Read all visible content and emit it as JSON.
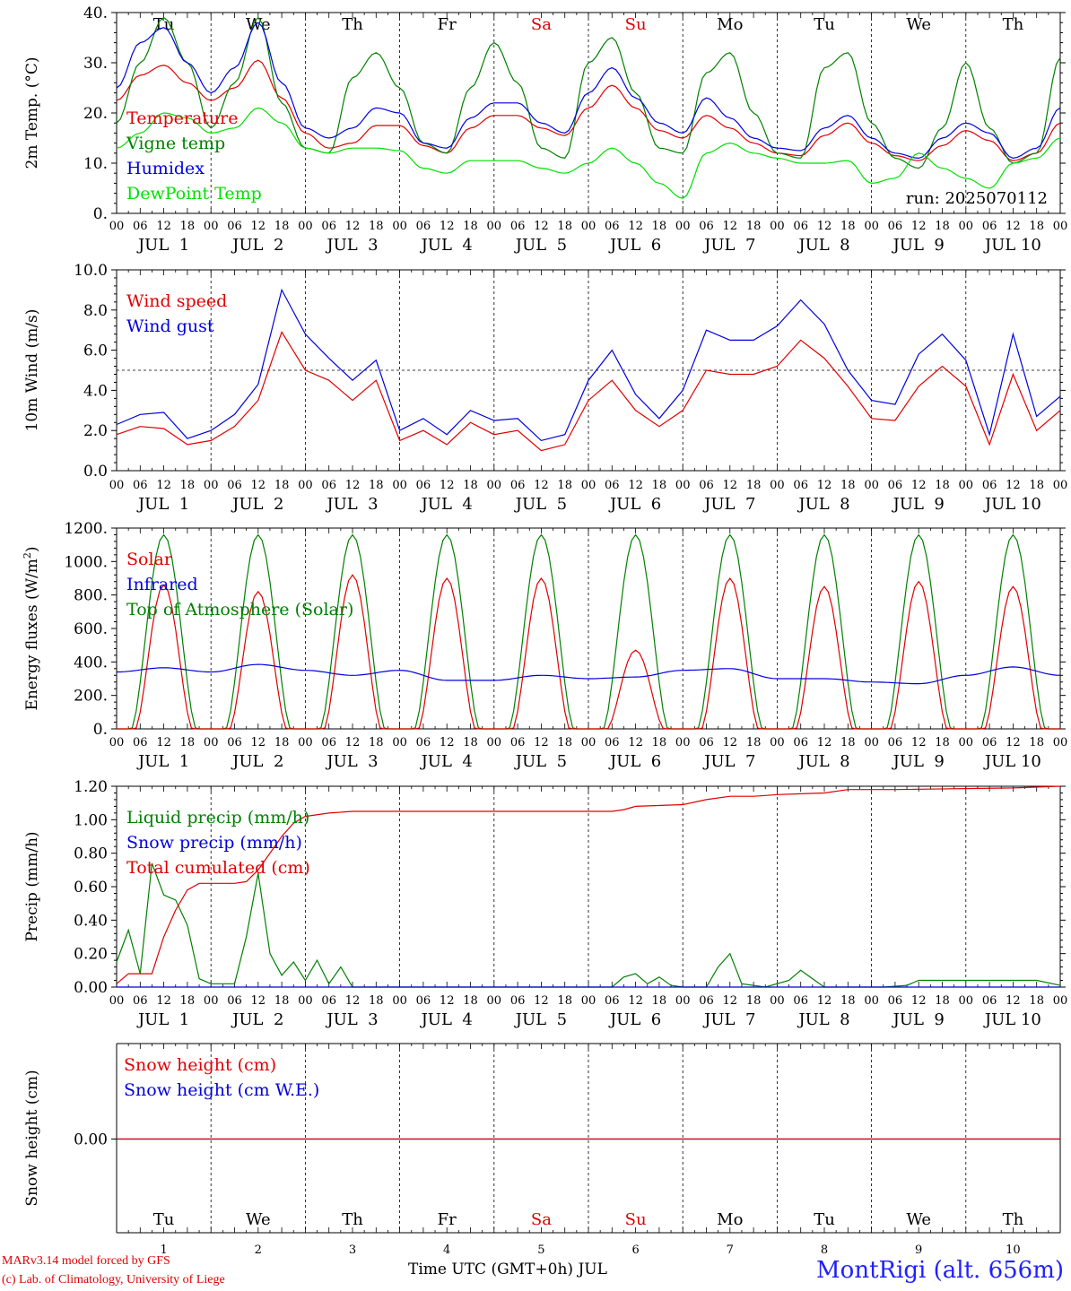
{
  "chart_data": [
    {
      "type": "line",
      "ylabel": "2m Temp. (°C)",
      "ylim": [
        0,
        40
      ],
      "yticks": [
        "0.",
        "10.",
        "20.",
        "30.",
        "40."
      ],
      "run_label": "run: 2025070112",
      "series": [
        {
          "name": "Temperature",
          "color": "#e00000",
          "x": [
            0,
            6,
            12,
            18,
            24,
            30,
            36,
            42,
            48,
            54,
            60,
            66,
            72,
            78,
            84,
            90,
            96,
            102,
            108,
            114,
            120,
            126,
            132,
            138,
            144,
            150,
            156,
            162,
            168,
            174,
            180,
            186,
            192,
            198,
            204,
            210,
            216,
            222,
            228,
            234,
            240
          ],
          "y": [
            22.5,
            27.5,
            29.5,
            26,
            22.5,
            25,
            30.5,
            23,
            16,
            13,
            14,
            17.5,
            17.5,
            13.5,
            12,
            17,
            19.5,
            19.5,
            17,
            15.5,
            21,
            25.5,
            21,
            16.5,
            15,
            19.5,
            17,
            14,
            12,
            11.5,
            15.5,
            18,
            14,
            11.5,
            10.5,
            13.5,
            16.5,
            14.5,
            10.5,
            12,
            18
          ]
        },
        {
          "name": "Vigne temp",
          "color": "#008000",
          "x": [
            0,
            6,
            12,
            18,
            24,
            30,
            36,
            42,
            48,
            54,
            60,
            66,
            72,
            78,
            84,
            90,
            96,
            102,
            108,
            114,
            120,
            126,
            132,
            138,
            144,
            150,
            156,
            162,
            168,
            174,
            180,
            186,
            192,
            198,
            204,
            210,
            216,
            222,
            228,
            234,
            240
          ],
          "y": [
            18,
            30,
            39,
            30,
            17,
            26,
            39,
            22,
            13,
            12,
            27,
            32,
            25,
            14,
            12,
            25,
            34,
            26,
            13,
            11,
            30,
            35,
            24,
            13,
            12,
            28,
            32,
            20,
            12,
            11,
            29,
            32,
            18,
            11,
            9,
            17,
            30,
            17,
            10,
            12,
            31
          ]
        },
        {
          "name": "Humidex",
          "color": "#0000e0",
          "x": [
            0,
            6,
            12,
            18,
            24,
            30,
            36,
            42,
            48,
            54,
            60,
            66,
            72,
            78,
            84,
            90,
            96,
            102,
            108,
            114,
            120,
            126,
            132,
            138,
            144,
            150,
            156,
            162,
            168,
            174,
            180,
            186,
            192,
            198,
            204,
            210,
            216,
            222,
            228,
            234,
            240
          ],
          "y": [
            25,
            34,
            37,
            30,
            24,
            29,
            38,
            26,
            17,
            15,
            17,
            21,
            20,
            14,
            13,
            19,
            22,
            22,
            18,
            16,
            24,
            29,
            23,
            18,
            16,
            23,
            19,
            15,
            13,
            12.5,
            17,
            19.5,
            15,
            12,
            11,
            15,
            18,
            16,
            11,
            13,
            21
          ]
        },
        {
          "name": "DewPoint Temp",
          "color": "#00e000",
          "x": [
            0,
            6,
            12,
            18,
            24,
            30,
            36,
            42,
            48,
            54,
            60,
            66,
            72,
            78,
            84,
            90,
            96,
            102,
            108,
            114,
            120,
            126,
            132,
            138,
            144,
            150,
            156,
            162,
            168,
            174,
            180,
            186,
            192,
            198,
            204,
            210,
            216,
            222,
            228,
            234,
            240
          ],
          "y": [
            13,
            16,
            20,
            19,
            16,
            17,
            21,
            18,
            13,
            12,
            13,
            13,
            12.5,
            9,
            8,
            10.5,
            10.5,
            10.5,
            9,
            8,
            10,
            13,
            10,
            6,
            3,
            12,
            14,
            12,
            11,
            10,
            10,
            10.5,
            6,
            7,
            12,
            9,
            7,
            5,
            10,
            11,
            15
          ]
        }
      ]
    },
    {
      "type": "line",
      "ylabel": "10m Wind (m/s)",
      "ylim": [
        0,
        10
      ],
      "yticks": [
        "0.0",
        "2.0",
        "4.0",
        "6.0",
        "8.0",
        "10.0"
      ],
      "reference_line": 5,
      "series": [
        {
          "name": "Wind speed",
          "color": "#e00000",
          "x": [
            0,
            6,
            12,
            18,
            24,
            30,
            36,
            42,
            48,
            54,
            60,
            66,
            72,
            78,
            84,
            90,
            96,
            102,
            108,
            114,
            120,
            126,
            132,
            138,
            144,
            150,
            156,
            162,
            168,
            174,
            180,
            186,
            192,
            198,
            204,
            210,
            216,
            222,
            228,
            234,
            240
          ],
          "y": [
            1.8,
            2.2,
            2.1,
            1.3,
            1.5,
            2.2,
            3.5,
            6.9,
            5,
            4.5,
            3.5,
            4.5,
            1.5,
            2,
            1.3,
            2.4,
            1.8,
            2,
            1,
            1.3,
            3.5,
            4.5,
            3,
            2.2,
            3,
            5,
            4.8,
            4.8,
            5.2,
            6.5,
            5.6,
            4.2,
            2.6,
            2.5,
            4.2,
            5.2,
            4.2,
            1.3,
            4.8,
            2,
            3
          ]
        },
        {
          "name": "Wind gust",
          "color": "#0000e0",
          "x": [
            0,
            6,
            12,
            18,
            24,
            30,
            36,
            42,
            48,
            54,
            60,
            66,
            72,
            78,
            84,
            90,
            96,
            102,
            108,
            114,
            120,
            126,
            132,
            138,
            144,
            150,
            156,
            162,
            168,
            174,
            180,
            186,
            192,
            198,
            204,
            210,
            216,
            222,
            228,
            234,
            240
          ],
          "y": [
            2.3,
            2.8,
            2.9,
            1.6,
            2,
            2.8,
            4.3,
            9,
            6.8,
            5.6,
            4.5,
            5.5,
            2,
            2.6,
            1.8,
            3,
            2.5,
            2.6,
            1.5,
            1.8,
            4.5,
            6,
            3.8,
            2.6,
            4,
            7,
            6.5,
            6.5,
            7.2,
            8.5,
            7.3,
            5,
            3.5,
            3.3,
            5.8,
            6.8,
            5.5,
            1.8,
            6.8,
            2.7,
            3.7
          ]
        }
      ]
    },
    {
      "type": "line",
      "ylabel": "Energy fluxes (W/m²)",
      "ylim": [
        0,
        1200
      ],
      "yticks": [
        "0.",
        "200.",
        "400.",
        "600.",
        "800.",
        "1000.",
        "1200."
      ],
      "series": [
        {
          "name": "Solar",
          "color": "#e00000",
          "daily_peak": [
            860,
            820,
            920,
            900,
            900,
            470,
            900,
            850,
            880,
            850
          ]
        },
        {
          "name": "Infrared",
          "color": "#0000e0",
          "x": [
            0,
            12,
            24,
            36,
            48,
            60,
            72,
            84,
            96,
            108,
            120,
            132,
            144,
            156,
            168,
            180,
            192,
            204,
            216,
            228,
            240
          ],
          "y": [
            340,
            365,
            340,
            385,
            350,
            320,
            350,
            290,
            290,
            320,
            300,
            310,
            350,
            360,
            300,
            300,
            280,
            270,
            320,
            370,
            320
          ]
        },
        {
          "name": "Top of Atmosphere (Solar)",
          "color": "#008000",
          "daily_peak": [
            1160,
            1160,
            1160,
            1160,
            1160,
            1160,
            1160,
            1160,
            1160,
            1160
          ]
        }
      ]
    },
    {
      "type": "line",
      "ylabel": "Precip (mm/h)",
      "ylim": [
        0,
        1.2
      ],
      "yticks": [
        "0.00",
        "0.20",
        "0.40",
        "0.60",
        "0.80",
        "1.00",
        "1.20"
      ],
      "series": [
        {
          "name": "Liquid precip (mm/h)",
          "color": "#008000",
          "x": [
            0,
            3,
            6,
            9,
            12,
            15,
            18,
            21,
            24,
            30,
            33,
            36,
            39,
            42,
            45,
            48,
            51,
            54,
            57,
            60,
            63,
            66,
            69,
            72,
            120,
            126,
            129,
            132,
            135,
            138,
            141,
            144,
            150,
            153,
            156,
            159,
            165,
            171,
            174,
            177,
            180,
            195,
            201,
            204,
            234,
            240
          ],
          "y": [
            0.15,
            0.34,
            0.08,
            0.74,
            0.55,
            0.52,
            0.37,
            0.05,
            0.02,
            0.02,
            0.3,
            0.68,
            0.2,
            0.07,
            0.15,
            0.04,
            0.16,
            0.02,
            0.12,
            0,
            0,
            0,
            0,
            0,
            0,
            0,
            0.06,
            0.08,
            0.02,
            0.06,
            0.01,
            0,
            0,
            0.12,
            0.2,
            0.02,
            0,
            0.04,
            0.1,
            0.05,
            0,
            0,
            0.01,
            0.04,
            0.04,
            0.01
          ]
        },
        {
          "name": "Snow precip (mm/h)",
          "color": "#0000e0",
          "x": [
            0,
            240
          ],
          "y": [
            0,
            0
          ]
        },
        {
          "name": "Total cumulated (cm)",
          "color": "#e00000",
          "x": [
            0,
            3,
            9,
            12,
            15,
            18,
            21,
            24,
            30,
            33,
            36,
            42,
            45,
            48,
            54,
            60,
            120,
            126,
            129,
            132,
            144,
            150,
            156,
            162,
            165,
            168,
            180,
            186,
            192,
            198,
            228,
            240
          ],
          "y": [
            0.02,
            0.08,
            0.08,
            0.3,
            0.46,
            0.58,
            0.62,
            0.62,
            0.62,
            0.63,
            0.7,
            0.9,
            0.98,
            1.02,
            1.04,
            1.05,
            1.05,
            1.05,
            1.06,
            1.08,
            1.09,
            1.12,
            1.14,
            1.14,
            1.145,
            1.15,
            1.16,
            1.18,
            1.18,
            1.18,
            1.19,
            1.2
          ]
        }
      ]
    },
    {
      "type": "line",
      "ylabel": "Snow height (cm)",
      "yticks": [
        "0.00"
      ],
      "series": [
        {
          "name": "Snow height (cm)",
          "color": "#e00000",
          "x": [
            0,
            240
          ],
          "y": [
            0,
            0
          ]
        },
        {
          "name": "Snow height (cm W.E.)",
          "color": "#0000e0",
          "x": [
            0,
            240
          ],
          "y": [
            0,
            0
          ]
        }
      ]
    }
  ],
  "x_axis": {
    "hour_ticks": [
      "00",
      "06",
      "12",
      "18"
    ],
    "final_tick": "00",
    "dates": [
      "JUL  1",
      "JUL  2",
      "JUL  3",
      "JUL  4",
      "JUL  5",
      "JUL  6",
      "JUL  7",
      "JUL  8",
      "JUL  9",
      "JUL 10"
    ],
    "weekdays": [
      "Tu",
      "We",
      "Th",
      "Fr",
      "Sa",
      "Su",
      "Mo",
      "Tu",
      "We",
      "Th"
    ],
    "weekend_color": "#e00000",
    "weekday_color": "#000000",
    "day_numbers": [
      "1",
      "2",
      "3",
      "4",
      "5",
      "6",
      "7",
      "8",
      "9",
      "10"
    ],
    "title": "Time UTC (GMT+0h) JUL"
  },
  "footer": {
    "credit_1": "MARv3.14 model forced by GFS",
    "credit_2": "(c) Lab. of Climatology, University of Liege",
    "station": "MontRigi (alt. 656m)"
  }
}
